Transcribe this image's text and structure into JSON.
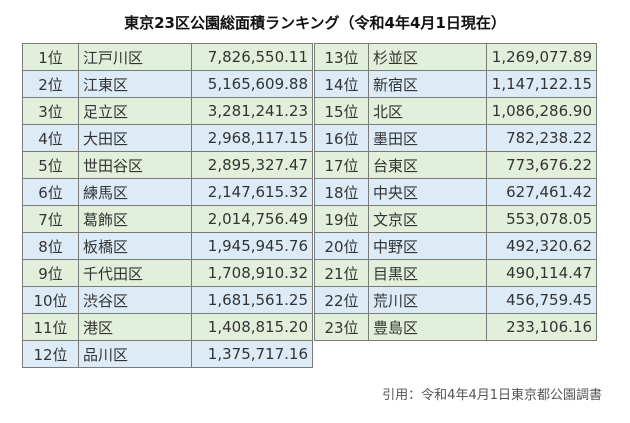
{
  "title": "東京23区公園総面積ランキング（令和4年4月1日現在）",
  "left_rows": [
    {
      "rank": "1位",
      "ward": "江戸川区",
      "area": "7,826,550.11",
      "color": "green"
    },
    {
      "rank": "2位",
      "ward": "江東区",
      "area": "5,165,609.88",
      "color": "blue"
    },
    {
      "rank": "3位",
      "ward": "足立区",
      "area": "3,281,241.23",
      "color": "green"
    },
    {
      "rank": "4位",
      "ward": "大田区",
      "area": "2,968,117.15",
      "color": "blue"
    },
    {
      "rank": "5位",
      "ward": "世田谷区",
      "area": "2,895,327.47",
      "color": "green"
    },
    {
      "rank": "6位",
      "ward": "練馬区",
      "area": "2,147,615.32",
      "color": "blue"
    },
    {
      "rank": "7位",
      "ward": "葛飾区",
      "area": "2,014,756.49",
      "color": "green"
    },
    {
      "rank": "8位",
      "ward": "板橋区",
      "area": "1,945,945.76",
      "color": "blue"
    },
    {
      "rank": "9位",
      "ward": "千代田区",
      "area": "1,708,910.32",
      "color": "green"
    },
    {
      "rank": "10位",
      "ward": "渋谷区",
      "area": "1,681,561.25",
      "color": "blue"
    },
    {
      "rank": "11位",
      "ward": "港区",
      "area": "1,408,815.20",
      "color": "green"
    },
    {
      "rank": "12位",
      "ward": "品川区",
      "area": "1,375,717.16",
      "color": "blue"
    }
  ],
  "right_rows": [
    {
      "rank": "13位",
      "ward": "杉並区",
      "area": "1,269,077.89",
      "color": "green"
    },
    {
      "rank": "14位",
      "ward": "新宿区",
      "area": "1,147,122.15",
      "color": "blue"
    },
    {
      "rank": "15位",
      "ward": "北区",
      "area": "1,086,286.90",
      "color": "green"
    },
    {
      "rank": "16位",
      "ward": "墨田区",
      "area": "782,238.22",
      "color": "blue"
    },
    {
      "rank": "17位",
      "ward": "台東区",
      "area": "773,676.22",
      "color": "green"
    },
    {
      "rank": "18位",
      "ward": "中央区",
      "area": "627,461.42",
      "color": "blue"
    },
    {
      "rank": "19位",
      "ward": "文京区",
      "area": "553,078.05",
      "color": "green"
    },
    {
      "rank": "20位",
      "ward": "中野区",
      "area": "492,320.62",
      "color": "blue"
    },
    {
      "rank": "21位",
      "ward": "目黒区",
      "area": "490,114.47",
      "color": "green"
    },
    {
      "rank": "22位",
      "ward": "荒川区",
      "area": "456,759.45",
      "color": "blue"
    },
    {
      "rank": "23位",
      "ward": "豊島区",
      "area": "233,106.16",
      "color": "green"
    }
  ],
  "colors": {
    "green": "#e2efda",
    "blue": "#ddebf7",
    "border": "#7a7a7a"
  },
  "source": "引用：令和4年4月1日東京都公園調書"
}
